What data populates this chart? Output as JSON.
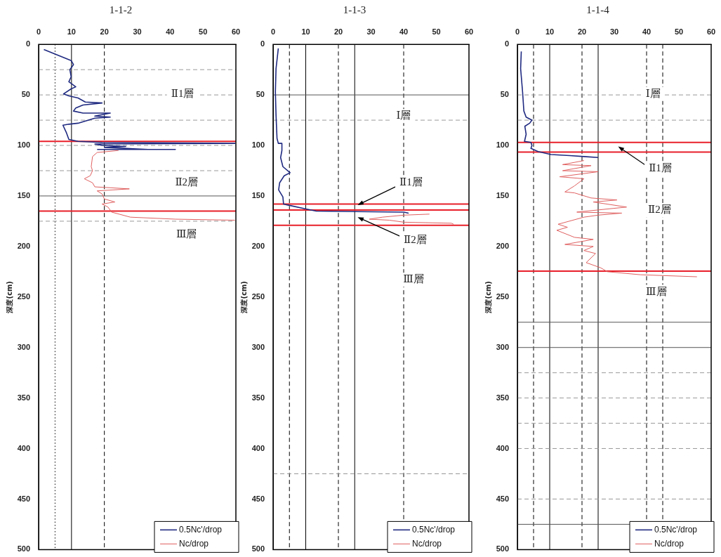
{
  "chart_data": [
    {
      "type": "line",
      "title": "1-1-2",
      "ylabel": "深度(cm)",
      "xlim": [
        0,
        60
      ],
      "xticks": [
        0,
        10,
        20,
        30,
        40,
        50,
        60
      ],
      "ylim": [
        500,
        0
      ],
      "yticks": [
        0,
        50,
        100,
        150,
        200,
        250,
        300,
        350,
        400,
        450,
        500
      ],
      "grid": false,
      "legend": "bottom right",
      "marker": "none",
      "series": [
        {
          "name": "0.5Nc'/drop",
          "color": "#1f2a80",
          "x": [
            1.6,
            9.9,
            10.6,
            9.5,
            9.9,
            9.2,
            11.3,
            9.9,
            7.6,
            9.2,
            12,
            14.2,
            19.3,
            13.5,
            11.3,
            10.6,
            13.5,
            21.8,
            17.1,
            21.8,
            17.1,
            12,
            9.2,
            7.4,
            8.4,
            9.2,
            12,
            19.3,
            59.7,
            17.1,
            19.3,
            26.5,
            20,
            33.3,
            41.6,
            17.8
          ],
          "values": [
            5,
            16,
            20,
            25,
            32,
            37,
            42,
            44,
            49,
            51,
            53,
            57,
            58,
            60,
            63,
            66,
            68,
            68,
            71,
            72,
            73,
            78,
            79,
            80,
            87,
            94,
            96,
            97,
            98,
            98.6,
            100,
            101,
            102,
            104,
            104,
            104
          ]
        },
        {
          "name": "Nc/drop",
          "color": "#e06060",
          "x": [
            24.3,
            17.8,
            16.4,
            16,
            16.4,
            15.7,
            13.9,
            16.4,
            17.1,
            27.6,
            17.8,
            19.3,
            20,
            23.2,
            19.3,
            21.1,
            22.2,
            27.9,
            41.6,
            59.7
          ],
          "values": [
            105,
            107,
            111,
            121,
            125,
            130,
            133,
            137,
            141,
            143,
            145,
            148,
            153,
            156,
            158,
            161,
            166,
            171,
            173,
            174
          ]
        }
      ],
      "ref_lines": [
        {
          "axis": "x",
          "value": 5,
          "color": "#000000",
          "line_style": "dotted"
        },
        {
          "axis": "x",
          "value": 10,
          "color": "#000000",
          "line_style": "solid"
        },
        {
          "axis": "x",
          "value": 20,
          "color": "#000000",
          "line_style": "dashed"
        },
        {
          "axis": "y",
          "value": 25,
          "color": "#999999",
          "line_style": "dashed"
        },
        {
          "axis": "y",
          "value": 50,
          "color": "#999999",
          "line_style": "dashed"
        },
        {
          "axis": "y",
          "value": 75,
          "color": "#999999",
          "line_style": "dashed"
        },
        {
          "axis": "y",
          "value": 100,
          "color": "#999999",
          "line_style": "dashed"
        },
        {
          "axis": "y",
          "value": 125,
          "color": "#999999",
          "line_style": "dashed"
        },
        {
          "axis": "y",
          "value": 150,
          "color": "#555555",
          "line_style": "solid"
        },
        {
          "axis": "y",
          "value": 175,
          "color": "#999999",
          "line_style": "dashed"
        },
        {
          "axis": "y",
          "value": 96,
          "color": "#e8202a",
          "line_style": "solid"
        },
        {
          "axis": "y",
          "value": 165,
          "color": "#e8202a",
          "line_style": "solid"
        }
      ],
      "annotations": [
        "Ⅱ1層",
        "Ⅱ2層",
        "Ⅲ層"
      ]
    },
    {
      "type": "line",
      "title": "1-1-3",
      "ylabel": "深度(cm)",
      "xlim": [
        0,
        60
      ],
      "xticks": [
        0,
        10,
        20,
        30,
        40,
        50,
        60
      ],
      "ylim": [
        500,
        0
      ],
      "yticks": [
        0,
        50,
        100,
        150,
        200,
        250,
        300,
        350,
        400,
        450,
        500
      ],
      "grid": false,
      "legend": "bottom right",
      "marker": "none",
      "series": [
        {
          "name": "0.5Nc'/drop",
          "color": "#1f2a80",
          "x": [
            1.6,
            0.9,
            0.7,
            0.9,
            1.2,
            1.6,
            2.7,
            2.7,
            2.3,
            3,
            5.2,
            3.4,
            2,
            1.7,
            3,
            3.2,
            4.5,
            10.3,
            13.2,
            40.1,
            41.5
          ],
          "values": [
            4,
            24,
            47,
            70,
            93,
            98,
            98,
            105,
            112,
            121,
            127,
            130,
            137,
            144,
            151,
            158,
            159,
            163,
            165,
            166,
            167
          ]
        },
        {
          "name": "Nc/drop",
          "color": "#e06060",
          "x": [
            47.9,
            40.1,
            33.5,
            29.5,
            35.6,
            40.1,
            54.6,
            55.3
          ],
          "values": [
            168,
            169,
            171,
            173,
            174,
            176,
            177,
            178
          ]
        }
      ],
      "ref_lines": [
        {
          "axis": "x",
          "value": 5,
          "color": "#000000",
          "line_style": "dashed"
        },
        {
          "axis": "x",
          "value": 10,
          "color": "#000000",
          "line_style": "solid"
        },
        {
          "axis": "x",
          "value": 20,
          "color": "#000000",
          "line_style": "dashed"
        },
        {
          "axis": "x",
          "value": 25,
          "color": "#000000",
          "line_style": "solid"
        },
        {
          "axis": "x",
          "value": 40,
          "color": "#000000",
          "line_style": "dashed"
        },
        {
          "axis": "y",
          "value": 50,
          "color": "#555555",
          "line_style": "solid"
        },
        {
          "axis": "y",
          "value": 75,
          "color": "#999999",
          "line_style": "dashed"
        },
        {
          "axis": "y",
          "value": 425,
          "color": "#999999",
          "line_style": "dashed"
        },
        {
          "axis": "y",
          "value": 158,
          "color": "#e8202a",
          "line_style": "solid"
        },
        {
          "axis": "y",
          "value": 164,
          "color": "#e8202a",
          "line_style": "solid"
        },
        {
          "axis": "y",
          "value": 179,
          "color": "#e8202a",
          "line_style": "solid"
        }
      ],
      "annotations": [
        "Ⅰ層",
        {
          "text": "Ⅱ1層",
          "x": 25.9,
          "y": 159
        },
        {
          "text": "Ⅱ2層",
          "x": 25.9,
          "y": 171
        },
        "Ⅲ層"
      ]
    },
    {
      "type": "line",
      "title": "1-1-4",
      "ylabel": "深度(cm)",
      "xlim": [
        0,
        60
      ],
      "xticks": [
        0,
        10,
        20,
        30,
        40,
        50,
        60
      ],
      "ylim": [
        500,
        0
      ],
      "yticks": [
        0,
        50,
        100,
        150,
        200,
        250,
        300,
        350,
        400,
        450,
        500
      ],
      "grid": false,
      "legend": "bottom right",
      "marker": "none",
      "series": [
        {
          "name": "0.5Nc'/drop",
          "color": "#1f2a80",
          "x": [
            1.2,
            1,
            1.6,
            2,
            2.7,
            4.5,
            3.8,
            2.3,
            2.7,
            2.2,
            4.2,
            4.5,
            4.2,
            6.4,
            10.4,
            16.2,
            20.6,
            25
          ],
          "values": [
            7,
            24,
            47,
            66,
            72,
            75,
            78,
            81,
            89,
            96,
            97,
            100,
            103,
            106,
            109,
            110,
            111,
            112
          ]
        },
        {
          "name": "Nc/drop",
          "color": "#e06060",
          "x": [
            20.6,
            14,
            22.8,
            14,
            25,
            13.1,
            20.6,
            17.7,
            14.7,
            17.7,
            22.8,
            30.8,
            23.5,
            33.8,
            18.4,
            32.3,
            25,
            20.6,
            12.6,
            15.5,
            12.2,
            17.7,
            23.5,
            14.7,
            23.5,
            20.6,
            24.2,
            21.3,
            25.7,
            27.9,
            38.1,
            55.6
          ],
          "values": [
            115,
            119,
            120,
            125,
            126,
            131,
            133,
            140,
            146,
            147,
            152,
            154,
            156,
            161,
            166,
            167,
            169,
            171,
            178,
            181,
            184,
            191,
            193,
            198,
            200,
            204,
            207,
            216,
            221,
            225,
            228,
            230
          ]
        }
      ],
      "ref_lines": [
        {
          "axis": "x",
          "value": 5,
          "color": "#000000",
          "line_style": "dashed"
        },
        {
          "axis": "x",
          "value": 10,
          "color": "#000000",
          "line_style": "solid"
        },
        {
          "axis": "x",
          "value": 20,
          "color": "#000000",
          "line_style": "dashed"
        },
        {
          "axis": "x",
          "value": 25,
          "color": "#000000",
          "line_style": "solid"
        },
        {
          "axis": "x",
          "value": 40,
          "color": "#000000",
          "line_style": "dashed"
        },
        {
          "axis": "x",
          "value": 45,
          "color": "#000000",
          "line_style": "dashed"
        },
        {
          "axis": "y",
          "value": 50,
          "color": "#999999",
          "line_style": "dashed"
        },
        {
          "axis": "y",
          "value": 75,
          "color": "#999999",
          "line_style": "dashed"
        },
        {
          "axis": "y",
          "value": 275,
          "color": "#555555",
          "line_style": "solid"
        },
        {
          "axis": "y",
          "value": 300,
          "color": "#555555",
          "line_style": "solid"
        },
        {
          "axis": "y",
          "value": 325,
          "color": "#999999",
          "line_style": "dashed"
        },
        {
          "axis": "y",
          "value": 350,
          "color": "#999999",
          "line_style": "dashed"
        },
        {
          "axis": "y",
          "value": 375,
          "color": "#999999",
          "line_style": "dashed"
        },
        {
          "axis": "y",
          "value": 400,
          "color": "#999999",
          "line_style": "dashed"
        },
        {
          "axis": "y",
          "value": 450,
          "color": "#999999",
          "line_style": "dashed"
        },
        {
          "axis": "y",
          "value": 475,
          "color": "#555555",
          "line_style": "solid"
        },
        {
          "axis": "y",
          "value": 97,
          "color": "#e8202a",
          "line_style": "solid"
        },
        {
          "axis": "y",
          "value": 106.5,
          "color": "#e8202a",
          "line_style": "solid"
        },
        {
          "axis": "y",
          "value": 224.5,
          "color": "#e8202a",
          "line_style": "solid"
        }
      ],
      "annotations": [
        "Ⅰ層",
        "Ⅱ1層",
        "Ⅱ2層",
        "Ⅲ層"
      ]
    }
  ]
}
